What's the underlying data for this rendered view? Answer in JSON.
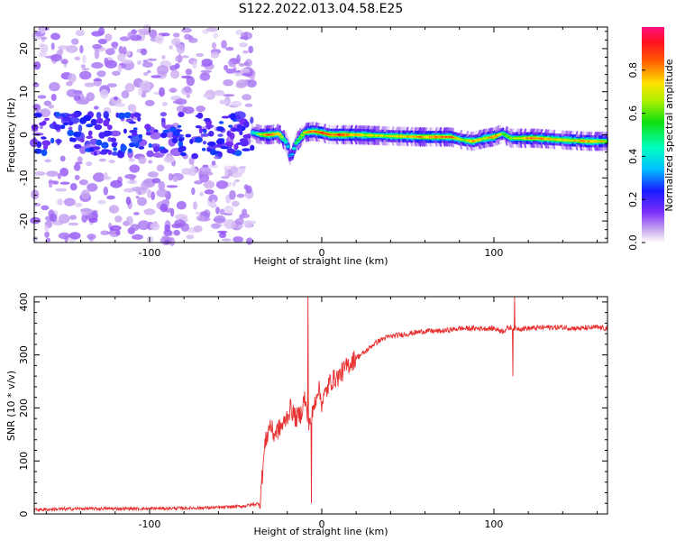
{
  "title": "S122.2022.013.04.58.E25",
  "chart_data": [
    {
      "type": "heatmap",
      "title": "S122.2022.013.04.58.E25",
      "xlabel": "Height of straight line (km)",
      "ylabel": "Frequency (Hz)",
      "xlim": [
        -167,
        166
      ],
      "ylim": [
        -25,
        25
      ],
      "x_ticks": [
        -100,
        0,
        100
      ],
      "y_ticks": [
        -20,
        -10,
        0,
        10,
        20
      ],
      "colorbar": {
        "label": "Normalized spectral amplitude",
        "range": [
          0,
          1
        ],
        "ticks": [
          0.0,
          0.2,
          0.4,
          0.6,
          0.8
        ],
        "colormap": "rainbow (white-purple-blue-cyan-green-yellow-orange-red-magenta)"
      },
      "noise_region_x": [
        -167,
        -40
      ],
      "carrier_track": [
        {
          "x": -40,
          "freq": 0.5,
          "amp": 0.4
        },
        {
          "x": -35,
          "freq": 0.0,
          "amp": 0.7
        },
        {
          "x": -30,
          "freq": 0.0,
          "amp": 0.85
        },
        {
          "x": -25,
          "freq": 0.3,
          "amp": 0.8
        },
        {
          "x": -20,
          "freq": -2.0,
          "amp": 0.4
        },
        {
          "x": -18,
          "freq": -5.5,
          "amp": 0.3
        },
        {
          "x": -15,
          "freq": -2.0,
          "amp": 0.5
        },
        {
          "x": -10,
          "freq": 0.5,
          "amp": 0.75
        },
        {
          "x": -5,
          "freq": 0.8,
          "amp": 0.85
        },
        {
          "x": 0,
          "freq": 0.5,
          "amp": 0.9
        },
        {
          "x": 5,
          "freq": 0.0,
          "amp": 0.85
        },
        {
          "x": 12,
          "freq": 0.0,
          "amp": 0.95
        },
        {
          "x": 20,
          "freq": 0.0,
          "amp": 0.75
        },
        {
          "x": 40,
          "freq": -0.3,
          "amp": 0.7
        },
        {
          "x": 60,
          "freq": -0.5,
          "amp": 0.8
        },
        {
          "x": 75,
          "freq": -0.5,
          "amp": 0.85
        },
        {
          "x": 82,
          "freq": -1.2,
          "amp": 0.6
        },
        {
          "x": 88,
          "freq": -1.5,
          "amp": 0.8
        },
        {
          "x": 95,
          "freq": -0.8,
          "amp": 0.7
        },
        {
          "x": 100,
          "freq": -0.5,
          "amp": 0.85
        },
        {
          "x": 105,
          "freq": 0.3,
          "amp": 0.6
        },
        {
          "x": 110,
          "freq": -0.8,
          "amp": 0.65
        },
        {
          "x": 125,
          "freq": -0.8,
          "amp": 0.85
        },
        {
          "x": 140,
          "freq": -1.2,
          "amp": 0.7
        },
        {
          "x": 155,
          "freq": -1.5,
          "amp": 0.8
        },
        {
          "x": 166,
          "freq": -1.5,
          "amp": 0.7
        }
      ]
    },
    {
      "type": "line",
      "xlabel": "Height of straight line (km)",
      "ylabel": "SNR (10 * v/v)",
      "xlim": [
        -167,
        166
      ],
      "ylim": [
        0,
        410
      ],
      "x_ticks": [
        -100,
        0,
        100
      ],
      "y_ticks": [
        0,
        100,
        200,
        300,
        400
      ],
      "line_color": "#e83030",
      "series": [
        {
          "x": [
            -167,
            -140,
            -100,
            -60,
            -45,
            -36,
            -33,
            -30,
            -28,
            -25,
            -22,
            -20,
            -18,
            -15,
            -12,
            -10,
            -8,
            -6,
            -4,
            -2,
            0,
            5,
            10,
            15,
            20,
            25,
            30,
            35,
            40,
            50,
            60,
            70,
            80,
            90,
            100,
            105,
            108,
            110,
            112,
            115,
            120,
            130,
            140,
            150,
            160,
            166
          ],
          "y": [
            8,
            10,
            10,
            12,
            15,
            20,
            130,
            170,
            150,
            160,
            170,
            185,
            200,
            180,
            190,
            220,
            175,
            180,
            210,
            240,
            210,
            250,
            260,
            280,
            295,
            305,
            320,
            330,
            335,
            340,
            345,
            345,
            350,
            350,
            350,
            345,
            350,
            352,
            350,
            350,
            350,
            352,
            352,
            350,
            352,
            350
          ]
        }
      ],
      "spikes": [
        {
          "x": -8,
          "y": 410
        },
        {
          "x": -6,
          "y": 20
        },
        {
          "x": 112,
          "y": 410
        },
        {
          "x": 111,
          "y": 260
        }
      ]
    }
  ]
}
